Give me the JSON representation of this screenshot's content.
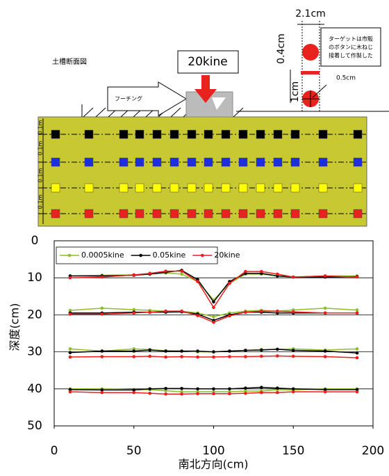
{
  "diagram": {
    "section_label": "土槽断面図",
    "load_label": "20kine",
    "footing_label": "フーチング",
    "target_width": "2.1cm",
    "target_height": "0.4cm",
    "target_spacing": "1cm",
    "target_size": "0.5cm",
    "target_note": [
      "ターゲットは市販",
      "のボタンに木ねじ",
      "接着して作製した"
    ],
    "depth_labels": [
      "0.1m",
      "0.1m",
      "0.1m",
      "0.1m"
    ]
  },
  "chart_data": {
    "type": "line",
    "xlabel": "南北方向(cm)",
    "ylabel": "深度(cm)",
    "x": [
      10,
      30,
      50,
      60,
      70,
      80,
      90,
      100,
      110,
      120,
      130,
      140,
      150,
      170,
      190
    ],
    "xlim": [
      0,
      200
    ],
    "xticks": [
      0,
      50,
      100,
      150,
      200
    ],
    "ylim": [
      0,
      50
    ],
    "yticks": [
      0,
      10,
      20,
      30,
      40,
      50
    ],
    "yreverse": true,
    "grid": true,
    "legend": "top-left",
    "series": [
      {
        "name": "0.0005kine",
        "color": "#8cbf26",
        "values": [
          [
            9.5,
            9.3,
            9.2,
            9,
            8.7,
            9,
            11,
            16,
            11.5,
            9,
            9,
            9.5,
            9.8,
            9.5,
            9.5
          ],
          [
            18.8,
            18.2,
            18.6,
            18.8,
            19,
            19,
            19.5,
            20.5,
            19.5,
            19,
            18.8,
            19,
            18.7,
            18.2,
            18.7
          ],
          [
            29.2,
            29.8,
            29.2,
            29.4,
            29.7,
            29.8,
            30,
            30,
            29.8,
            29.6,
            29.4,
            29.3,
            29.2,
            29.5,
            29.2
          ],
          [
            40,
            40,
            40.2,
            40.2,
            40.5,
            40.8,
            40.8,
            40.8,
            40.8,
            40.6,
            40.6,
            40.2,
            40.3,
            40,
            40
          ]
        ]
      },
      {
        "name": "0.05kine",
        "color": "#000000",
        "values": [
          [
            9.5,
            9.5,
            9.3,
            9,
            8.5,
            8,
            10.5,
            16.5,
            11,
            8.8,
            8.8,
            9.5,
            9.8,
            9.8,
            9.7
          ],
          [
            19.5,
            19.5,
            19.3,
            19.3,
            19.3,
            19.2,
            19.8,
            21.5,
            20,
            19.3,
            19.3,
            19.5,
            19.5,
            19.5,
            19.5
          ],
          [
            30.2,
            29.8,
            29.8,
            29.5,
            29.8,
            29.8,
            29.8,
            30,
            29.8,
            29.6,
            29.5,
            29.3,
            29.6,
            29.8,
            30.3
          ],
          [
            40.2,
            40.3,
            40.3,
            40,
            39.9,
            39.9,
            40,
            40,
            40,
            39.8,
            39.6,
            39.8,
            40,
            40.2,
            40.2
          ]
        ]
      },
      {
        "name": "20kine",
        "color": "#ee1c1c",
        "values": [
          [
            10,
            9.8,
            9.2,
            8.8,
            8.2,
            8.2,
            11,
            18,
            11.5,
            8.3,
            8.3,
            9,
            9.8,
            9.5,
            9.8
          ],
          [
            19.8,
            19.8,
            19.5,
            19.3,
            19,
            19,
            20.2,
            22,
            20.3,
            19.3,
            19,
            19,
            19.2,
            19.5,
            19.5
          ],
          [
            31.4,
            31.3,
            31.3,
            31.2,
            31.4,
            31.3,
            31.4,
            31.4,
            31.3,
            31.3,
            31.2,
            31.1,
            31.2,
            31.3,
            31.6
          ],
          [
            40.8,
            41,
            41,
            41.2,
            41.4,
            41.4,
            41.3,
            41.3,
            41.3,
            41.2,
            41,
            41,
            40.8,
            40.8,
            40.8
          ]
        ]
      }
    ]
  }
}
